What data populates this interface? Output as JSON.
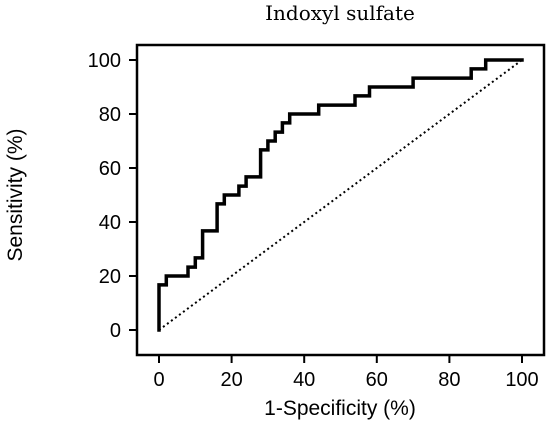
{
  "chart_data": {
    "type": "line",
    "title": "Indoxyl sulfate",
    "xlabel": "1-Specificity (%)",
    "ylabel": "Sensitivity (%)",
    "xlim": [
      0,
      100
    ],
    "ylim": [
      0,
      100
    ],
    "xticks": [
      0,
      20,
      40,
      60,
      80,
      100
    ],
    "yticks": [
      0,
      20,
      40,
      60,
      80,
      100
    ],
    "grid": false,
    "legend": "none",
    "series": [
      {
        "style": "solid-step",
        "points": [
          [
            0,
            0
          ],
          [
            0,
            16.7
          ],
          [
            2,
            16.7
          ],
          [
            2,
            20
          ],
          [
            8,
            20
          ],
          [
            8,
            23.3
          ],
          [
            10,
            23.3
          ],
          [
            10,
            26.7
          ],
          [
            12,
            26.7
          ],
          [
            12,
            30
          ],
          [
            12,
            33.3
          ],
          [
            12,
            36.7
          ],
          [
            16,
            36.7
          ],
          [
            16,
            40
          ],
          [
            16,
            43.3
          ],
          [
            16,
            46.7
          ],
          [
            18,
            46.7
          ],
          [
            18,
            50
          ],
          [
            22,
            50
          ],
          [
            22,
            53.3
          ],
          [
            24,
            53.3
          ],
          [
            24,
            56.7
          ],
          [
            28,
            56.7
          ],
          [
            28,
            60
          ],
          [
            28,
            63.3
          ],
          [
            28,
            66.7
          ],
          [
            30,
            66.7
          ],
          [
            30,
            70
          ],
          [
            32,
            70
          ],
          [
            32,
            73.3
          ],
          [
            34,
            73.3
          ],
          [
            34,
            76.7
          ],
          [
            36,
            76.7
          ],
          [
            36,
            80
          ],
          [
            44,
            80
          ],
          [
            44,
            83.3
          ],
          [
            54,
            83.3
          ],
          [
            54,
            86.7
          ],
          [
            58,
            86.7
          ],
          [
            58,
            90
          ],
          [
            70,
            90
          ],
          [
            70,
            93.3
          ],
          [
            86,
            93.3
          ],
          [
            86,
            96.7
          ],
          [
            90,
            96.7
          ],
          [
            90,
            100
          ],
          [
            100,
            100
          ]
        ]
      },
      {
        "style": "dotted-reference",
        "points": [
          [
            0,
            0
          ],
          [
            100,
            100
          ]
        ]
      }
    ]
  }
}
